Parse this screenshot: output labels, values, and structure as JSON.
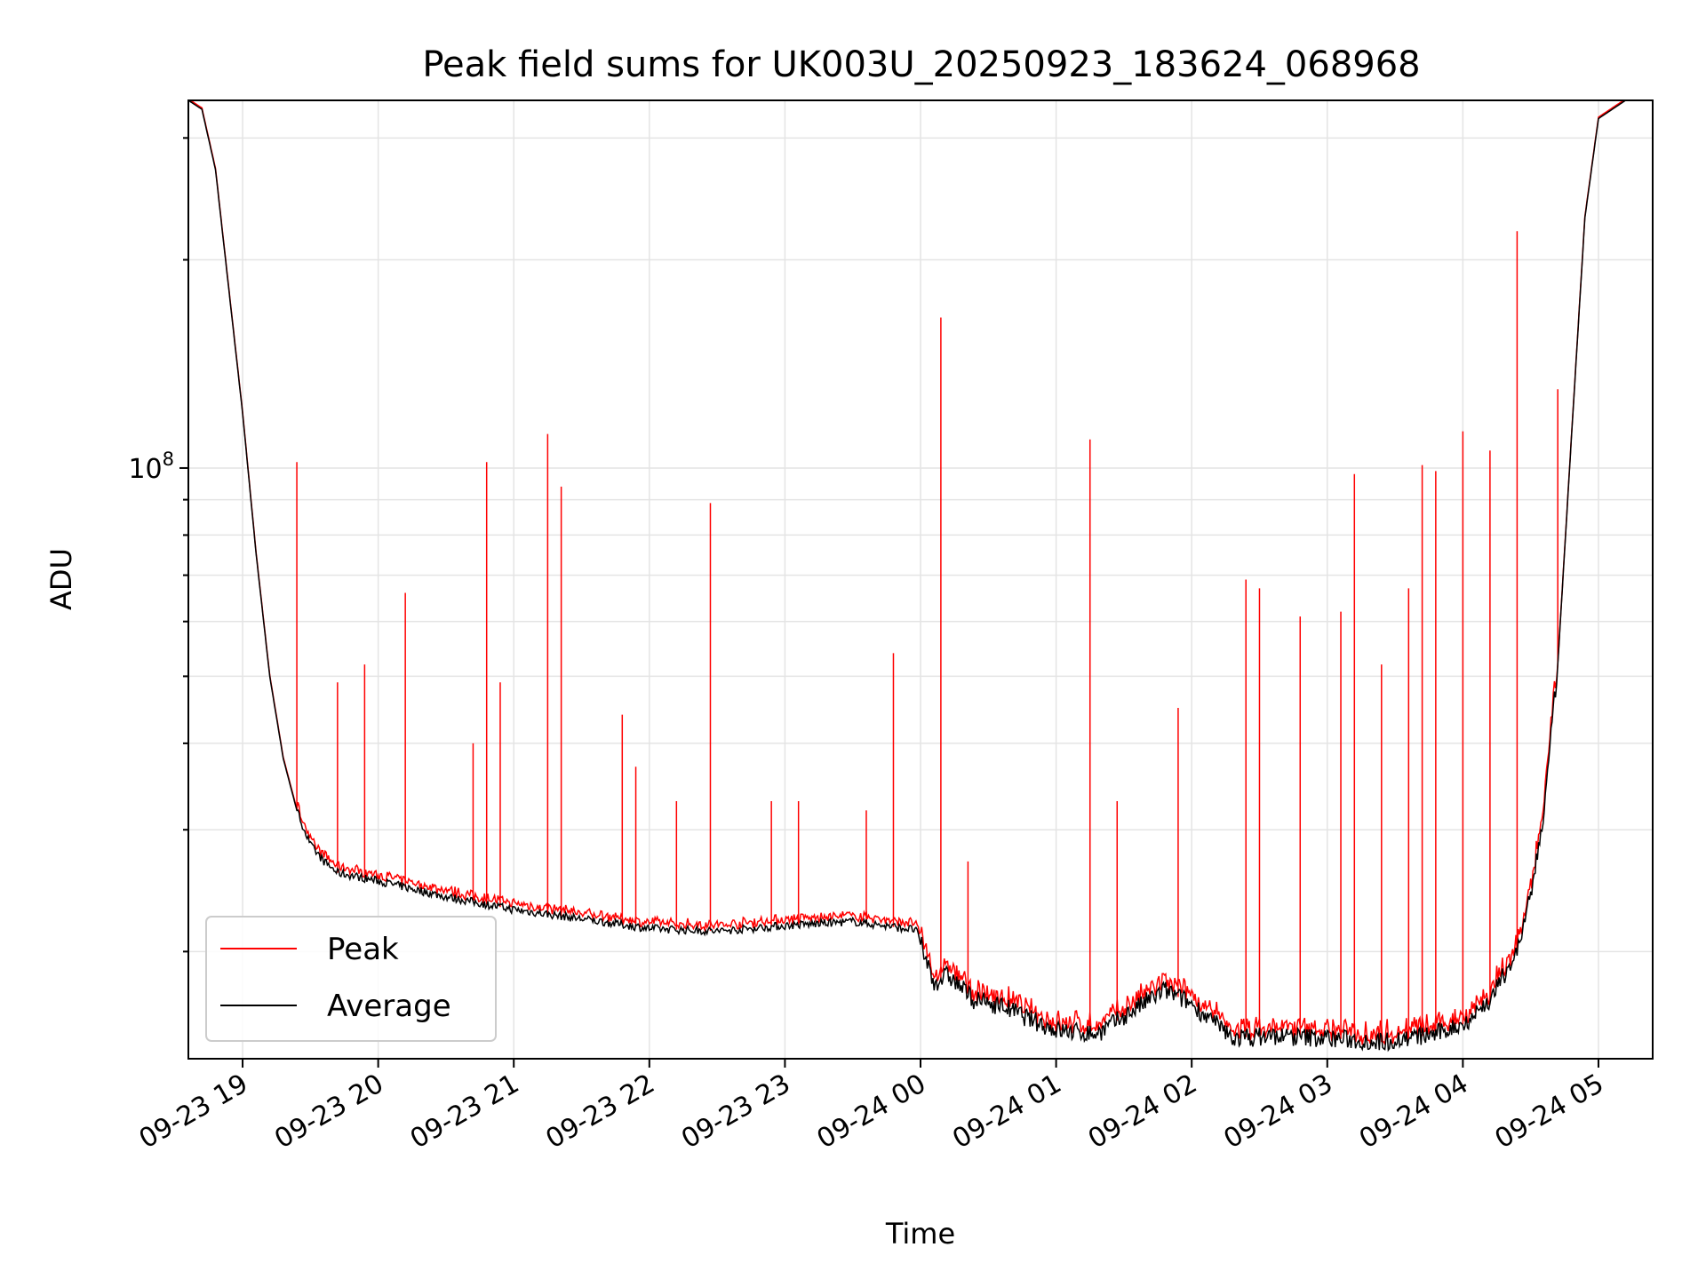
{
  "chart_data": {
    "type": "line",
    "title": "Peak field sums for UK003U_20250923_183624_068968",
    "xlabel": "Time",
    "ylabel": "ADU",
    "xscale": "time",
    "yscale": "log",
    "xlim": [
      "2025-09-23 18:36",
      "2025-09-24 05:24"
    ],
    "ylim": [
      14000000,
      340000000
    ],
    "x_ticks": [
      "09-23 19",
      "09-23 20",
      "09-23 21",
      "09-23 22",
      "09-23 23",
      "09-24 00",
      "09-24 01",
      "09-24 02",
      "09-24 03",
      "09-24 04",
      "09-24 05"
    ],
    "y_major_ticks": [
      {
        "value": 100000000,
        "label": "10",
        "exponent": "8"
      }
    ],
    "grid": true,
    "legend": {
      "position": "lower-left",
      "entries": [
        "Peak",
        "Average"
      ]
    },
    "series": [
      {
        "name": "Average",
        "color": "#000000",
        "points": [
          [
            "2025-09-23 18:36",
            340000000
          ],
          [
            "2025-09-23 18:42",
            330000000
          ],
          [
            "2025-09-23 18:48",
            270000000
          ],
          [
            "2025-09-23 18:54",
            180000000
          ],
          [
            "2025-09-23 19:00",
            120000000
          ],
          [
            "2025-09-23 19:06",
            75000000
          ],
          [
            "2025-09-23 19:12",
            50000000
          ],
          [
            "2025-09-23 19:18",
            38000000
          ],
          [
            "2025-09-23 19:24",
            32000000
          ],
          [
            "2025-09-23 19:30",
            28500000
          ],
          [
            "2025-09-23 19:36",
            27000000
          ],
          [
            "2025-09-23 19:42",
            26000000
          ],
          [
            "2025-09-23 20:00",
            25300000
          ],
          [
            "2025-09-23 20:30",
            24000000
          ],
          [
            "2025-09-23 21:00",
            23000000
          ],
          [
            "2025-09-23 21:30",
            22300000
          ],
          [
            "2025-09-23 22:00",
            21600000
          ],
          [
            "2025-09-23 22:30",
            21400000
          ],
          [
            "2025-09-23 23:00",
            21800000
          ],
          [
            "2025-09-23 23:30",
            22100000
          ],
          [
            "2025-09-23 23:58",
            21500000
          ],
          [
            "2025-09-24 00:06",
            18000000
          ],
          [
            "2025-09-24 00:12",
            18500000
          ],
          [
            "2025-09-24 00:24",
            17000000
          ],
          [
            "2025-09-24 00:36",
            16700000
          ],
          [
            "2025-09-24 00:48",
            16000000
          ],
          [
            "2025-09-24 01:00",
            15400000
          ],
          [
            "2025-09-24 01:18",
            15200000
          ],
          [
            "2025-09-24 01:36",
            16600000
          ],
          [
            "2025-09-24 01:48",
            17600000
          ],
          [
            "2025-09-24 02:00",
            16800000
          ],
          [
            "2025-09-24 02:18",
            15000000
          ],
          [
            "2025-09-24 02:36",
            15100000
          ],
          [
            "2025-09-24 03:00",
            15000000
          ],
          [
            "2025-09-24 03:24",
            14800000
          ],
          [
            "2025-09-24 03:48",
            15200000
          ],
          [
            "2025-09-24 04:00",
            15700000
          ],
          [
            "2025-09-24 04:12",
            17000000
          ],
          [
            "2025-09-24 04:24",
            20000000
          ],
          [
            "2025-09-24 04:30",
            24000000
          ],
          [
            "2025-09-24 04:36",
            32000000
          ],
          [
            "2025-09-24 04:42",
            52000000
          ],
          [
            "2025-09-24 04:48",
            110000000
          ],
          [
            "2025-09-24 04:54",
            230000000
          ],
          [
            "2025-09-24 05:00",
            320000000
          ],
          [
            "2025-09-24 05:12",
            340000000
          ],
          [
            "2025-09-24 05:24",
            340000000
          ]
        ]
      },
      {
        "name": "Peak",
        "color": "#ff0000",
        "spikes": [
          [
            "2025-09-23 19:24",
            102000000
          ],
          [
            "2025-09-23 19:42",
            49000000
          ],
          [
            "2025-09-23 19:54",
            52000000
          ],
          [
            "2025-09-23 20:12",
            66000000
          ],
          [
            "2025-09-23 20:42",
            40000000
          ],
          [
            "2025-09-23 20:48",
            102000000
          ],
          [
            "2025-09-23 20:54",
            49000000
          ],
          [
            "2025-09-23 21:15",
            112000000
          ],
          [
            "2025-09-23 21:21",
            94000000
          ],
          [
            "2025-09-23 21:48",
            44000000
          ],
          [
            "2025-09-23 21:54",
            37000000
          ],
          [
            "2025-09-23 22:12",
            33000000
          ],
          [
            "2025-09-23 22:27",
            89000000
          ],
          [
            "2025-09-23 22:54",
            33000000
          ],
          [
            "2025-09-23 23:06",
            33000000
          ],
          [
            "2025-09-23 23:36",
            32000000
          ],
          [
            "2025-09-23 23:48",
            54000000
          ],
          [
            "2025-09-24 00:09",
            165000000
          ],
          [
            "2025-09-24 00:21",
            27000000
          ],
          [
            "2025-09-24 01:15",
            110000000
          ],
          [
            "2025-09-24 01:27",
            33000000
          ],
          [
            "2025-09-24 01:54",
            45000000
          ],
          [
            "2025-09-24 02:24",
            69000000
          ],
          [
            "2025-09-24 02:30",
            67000000
          ],
          [
            "2025-09-24 02:48",
            61000000
          ],
          [
            "2025-09-24 03:06",
            62000000
          ],
          [
            "2025-09-24 03:12",
            98000000
          ],
          [
            "2025-09-24 03:24",
            52000000
          ],
          [
            "2025-09-24 03:36",
            67000000
          ],
          [
            "2025-09-24 03:42",
            101000000
          ],
          [
            "2025-09-24 03:48",
            99000000
          ],
          [
            "2025-09-24 04:00",
            113000000
          ],
          [
            "2025-09-24 04:12",
            106000000
          ],
          [
            "2025-09-24 04:24",
            220000000
          ],
          [
            "2025-09-24 04:42",
            130000000
          ]
        ]
      }
    ]
  }
}
